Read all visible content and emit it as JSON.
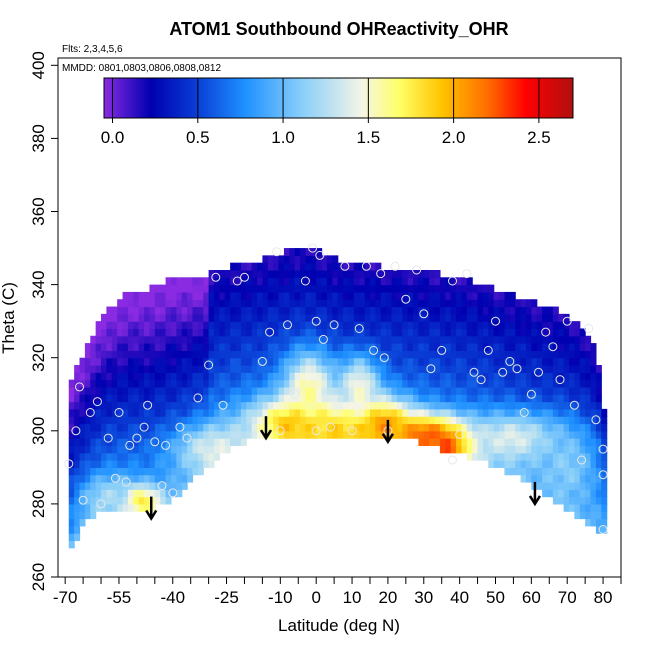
{
  "chart_data": {
    "type": "heatmap",
    "title": "ATOM1 Southbound OHReactivity_OHR",
    "subtitle_flights": "Flts: 2,3,4,5,6",
    "subtitle_dates": "MMDD: 0801,0803,0806,0808,0812",
    "xlabel": "Latitude (deg N)",
    "ylabel": "Theta (C)",
    "xlim": [
      -72,
      85
    ],
    "ylim": [
      260,
      402
    ],
    "x_ticks": [
      -70,
      -55,
      -40,
      -25,
      -10,
      0,
      10,
      20,
      30,
      40,
      50,
      60,
      70,
      80
    ],
    "x_minor_ticks": [
      -65,
      -60,
      -50,
      -45,
      -35,
      -30,
      -20,
      -15,
      -5,
      5,
      15,
      25,
      35,
      45,
      55,
      65,
      75,
      85
    ],
    "y_ticks": [
      260,
      280,
      300,
      320,
      340,
      360,
      380,
      400
    ],
    "colorbar": {
      "ticks": [
        "0.0",
        "0.5",
        "1.0",
        "1.5",
        "2.0",
        "2.5"
      ],
      "tick_values": [
        0,
        0.5,
        1.0,
        1.5,
        2.0,
        2.5
      ],
      "range": [
        -0.05,
        2.7
      ],
      "colors": [
        "#8a2be2",
        "#0000b0",
        "#0a3fd6",
        "#1e90ff",
        "#87cefa",
        "#f5f5e6",
        "#ffff66",
        "#ffc400",
        "#ff6a00",
        "#ff0000",
        "#b01010"
      ],
      "color_stops": [
        0,
        0.1,
        0.2,
        0.3,
        0.42,
        0.55,
        0.63,
        0.72,
        0.82,
        0.9,
        1.0
      ]
    },
    "surface_boundary": [
      [
        -69,
        266
      ],
      [
        -67,
        270
      ],
      [
        -65,
        274
      ],
      [
        -62,
        277
      ],
      [
        -58,
        279
      ],
      [
        -52,
        279
      ],
      [
        -48,
        278
      ],
      [
        -45,
        279
      ],
      [
        -42,
        280
      ],
      [
        -38,
        283
      ],
      [
        -33,
        288
      ],
      [
        -28,
        292
      ],
      [
        -22,
        296
      ],
      [
        -16,
        298
      ],
      [
        -10,
        299
      ],
      [
        -5,
        299
      ],
      [
        0,
        298
      ],
      [
        5,
        298
      ],
      [
        12,
        298
      ],
      [
        20,
        298
      ],
      [
        28,
        297
      ],
      [
        35,
        295
      ],
      [
        42,
        293
      ],
      [
        48,
        291
      ],
      [
        55,
        288
      ],
      [
        62,
        284
      ],
      [
        70,
        278
      ],
      [
        76,
        274
      ],
      [
        80,
        272
      ]
    ],
    "upper_boundary": [
      [
        -69,
        313
      ],
      [
        -67,
        318
      ],
      [
        -64,
        323
      ],
      [
        -62,
        327
      ],
      [
        -60,
        331
      ],
      [
        -56,
        335
      ],
      [
        -52,
        338
      ],
      [
        -46,
        339
      ],
      [
        -42,
        341
      ],
      [
        -36,
        342
      ],
      [
        -30,
        343
      ],
      [
        -24,
        345
      ],
      [
        -18,
        346
      ],
      [
        -12,
        348
      ],
      [
        -6,
        350
      ],
      [
        -3,
        351
      ],
      [
        0,
        350
      ],
      [
        6,
        347
      ],
      [
        12,
        346
      ],
      [
        18,
        345
      ],
      [
        26,
        344
      ],
      [
        34,
        343
      ],
      [
        40,
        342
      ],
      [
        46,
        340
      ],
      [
        52,
        338
      ],
      [
        58,
        336
      ],
      [
        64,
        334
      ],
      [
        70,
        332
      ],
      [
        74,
        328
      ],
      [
        77,
        324
      ],
      [
        79,
        316
      ],
      [
        80,
        306
      ]
    ],
    "ohr_hotspots": [
      {
        "lat": -5,
        "theta": 302,
        "value": 2.1,
        "spread_lat": 9,
        "spread_theta": 5
      },
      {
        "lat": 5,
        "theta": 300,
        "value": 1.9,
        "spread_lat": 8,
        "spread_theta": 4
      },
      {
        "lat": 18,
        "theta": 302,
        "value": 2.1,
        "spread_lat": 6,
        "spread_theta": 5
      },
      {
        "lat": 30,
        "theta": 299,
        "value": 2.2,
        "spread_lat": 7,
        "spread_theta": 4
      },
      {
        "lat": 37,
        "theta": 296,
        "value": 2.45,
        "spread_lat": 5,
        "spread_theta": 4
      },
      {
        "lat": -2,
        "theta": 312,
        "value": 1.6,
        "spread_lat": 5,
        "spread_theta": 7
      },
      {
        "lat": 12,
        "theta": 312,
        "value": 1.5,
        "spread_lat": 4,
        "spread_theta": 6
      },
      {
        "lat": -28,
        "theta": 295,
        "value": 1.4,
        "spread_lat": 8,
        "spread_theta": 5
      },
      {
        "lat": -49,
        "theta": 281,
        "value": 1.9,
        "spread_lat": 4,
        "spread_theta": 3
      },
      {
        "lat": -58,
        "theta": 282,
        "value": 1.2,
        "spread_lat": 5,
        "spread_theta": 4
      },
      {
        "lat": 55,
        "theta": 298,
        "value": 1.4,
        "spread_lat": 10,
        "spread_theta": 5
      },
      {
        "lat": 70,
        "theta": 290,
        "value": 1.1,
        "spread_lat": 6,
        "spread_theta": 8
      }
    ],
    "arrows": [
      {
        "lat": -46,
        "theta": 281
      },
      {
        "lat": -14,
        "theta": 303
      },
      {
        "lat": 20,
        "theta": 302
      },
      {
        "lat": 61,
        "theta": 285
      }
    ],
    "sample_points": [
      [
        -69,
        291
      ],
      [
        -66,
        312
      ],
      [
        -63,
        305
      ],
      [
        -61,
        308
      ],
      [
        -58,
        298
      ],
      [
        -55,
        305
      ],
      [
        -52,
        296
      ],
      [
        -50,
        298
      ],
      [
        -48,
        301
      ],
      [
        -47,
        307
      ],
      [
        -45,
        297
      ],
      [
        -42,
        296
      ],
      [
        -40,
        283
      ],
      [
        -38,
        301
      ],
      [
        -36,
        298
      ],
      [
        -33,
        309
      ],
      [
        -30,
        318
      ],
      [
        -28,
        342
      ],
      [
        -22,
        341
      ],
      [
        -20,
        342
      ],
      [
        -15,
        319
      ],
      [
        -13,
        327
      ],
      [
        -11,
        349
      ],
      [
        -8,
        329
      ],
      [
        -6,
        310
      ],
      [
        -3,
        341
      ],
      [
        -1,
        350
      ],
      [
        0,
        330
      ],
      [
        0,
        300
      ],
      [
        1,
        348
      ],
      [
        2,
        325
      ],
      [
        4,
        301
      ],
      [
        5,
        329
      ],
      [
        8,
        345
      ],
      [
        12,
        328
      ],
      [
        14,
        345
      ],
      [
        16,
        322
      ],
      [
        18,
        343
      ],
      [
        19,
        320
      ],
      [
        20,
        300
      ],
      [
        22,
        345
      ],
      [
        25,
        336
      ],
      [
        28,
        344
      ],
      [
        30,
        332
      ],
      [
        32,
        317
      ],
      [
        35,
        322
      ],
      [
        38,
        341
      ],
      [
        40,
        299
      ],
      [
        42,
        343
      ],
      [
        44,
        316
      ],
      [
        46,
        314
      ],
      [
        48,
        322
      ],
      [
        50,
        330
      ],
      [
        52,
        316
      ],
      [
        54,
        319
      ],
      [
        56,
        317
      ],
      [
        58,
        305
      ],
      [
        60,
        310
      ],
      [
        62,
        316
      ],
      [
        64,
        327
      ],
      [
        66,
        323
      ],
      [
        68,
        314
      ],
      [
        70,
        330
      ],
      [
        72,
        307
      ],
      [
        74,
        292
      ],
      [
        76,
        328
      ],
      [
        78,
        303
      ],
      [
        80,
        295
      ],
      [
        80,
        288
      ],
      [
        80,
        273
      ],
      [
        -67,
        300
      ],
      [
        -65,
        281
      ],
      [
        -56,
        287
      ],
      [
        -60,
        280
      ],
      [
        -53,
        286
      ],
      [
        -43,
        285
      ],
      [
        -10,
        300
      ],
      [
        10,
        300
      ],
      [
        38,
        292
      ],
      [
        -26,
        307
      ]
    ]
  }
}
